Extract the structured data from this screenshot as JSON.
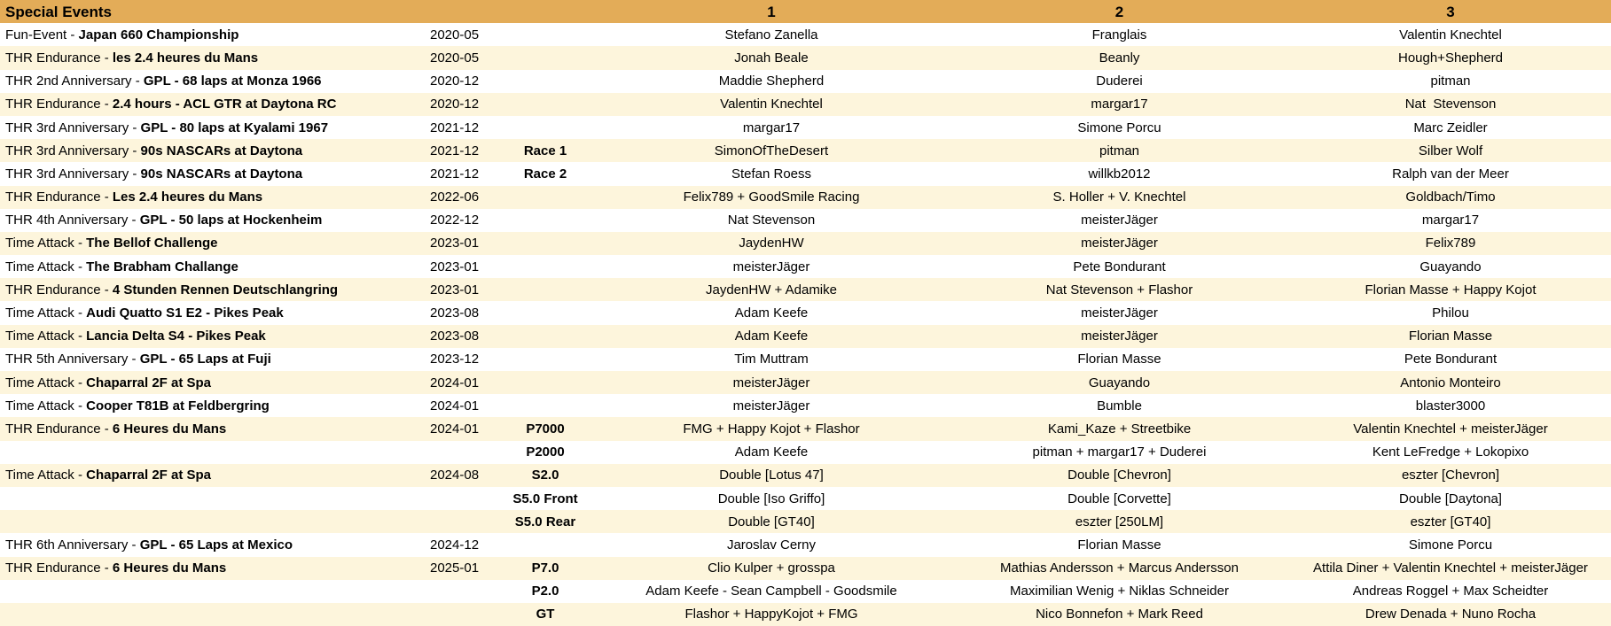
{
  "header": {
    "title": "Special Events",
    "position_columns": [
      "1",
      "2",
      "3"
    ]
  },
  "colors": {
    "header_bg": "#e3ac58",
    "row_bg": "#ffffff",
    "row_alt_bg": "#fdf5dc",
    "text": "#000000"
  },
  "rows": [
    {
      "event_prefix": "Fun-Event - ",
      "event_name": "Japan 660 Championship",
      "date": "2020-05",
      "race_class": "",
      "p1": "Stefano Zanella",
      "p2": "Franglais",
      "p3": "Valentin Knechtel"
    },
    {
      "event_prefix": "THR Endurance - ",
      "event_name": "les 2.4 heures du Mans",
      "date": "2020-05",
      "race_class": "",
      "p1": "Jonah Beale",
      "p2": "Beanly",
      "p3": "Hough+Shepherd"
    },
    {
      "event_prefix": "THR 2nd Anniversary - ",
      "event_name": "GPL - 68 laps at Monza 1966",
      "date": "2020-12",
      "race_class": "",
      "p1": "Maddie Shepherd",
      "p2": "Duderei",
      "p3": "pitman"
    },
    {
      "event_prefix": "THR Endurance - ",
      "event_name": "2.4 hours - ACL GTR at Daytona RC",
      "date": "2020-12",
      "race_class": "",
      "p1": "Valentin Knechtel",
      "p2": "margar17",
      "p3": "Nat  Stevenson"
    },
    {
      "event_prefix": "THR 3rd Anniversary - ",
      "event_name": "GPL - 80 laps at Kyalami 1967",
      "date": "2021-12",
      "race_class": "",
      "p1": "margar17",
      "p2": "Simone Porcu",
      "p3": "Marc Zeidler"
    },
    {
      "event_prefix": "THR 3rd Anniversary - ",
      "event_name": "90s NASCARs at Daytona",
      "date": "2021-12",
      "race_class": "Race 1",
      "p1": "SimonOfTheDesert",
      "p2": "pitman",
      "p3": "Silber Wolf"
    },
    {
      "event_prefix": "THR 3rd Anniversary - ",
      "event_name": "90s NASCARs at Daytona",
      "date": "2021-12",
      "race_class": "Race 2",
      "p1": "Stefan Roess",
      "p2": "willkb2012",
      "p3": "Ralph van der Meer"
    },
    {
      "event_prefix": "THR Endurance - ",
      "event_name": "Les 2.4 heures du Mans",
      "date": "2022-06",
      "race_class": "",
      "p1": "Felix789 + GoodSmile Racing",
      "p2": "S. Holler + V. Knechtel",
      "p3": "Goldbach/Timo"
    },
    {
      "event_prefix": "THR 4th Anniversary - ",
      "event_name": "GPL - 50 laps at Hockenheim",
      "date": "2022-12",
      "race_class": "",
      "p1": "Nat Stevenson",
      "p2": "meisterJäger",
      "p3": "margar17"
    },
    {
      "event_prefix": "Time Attack - ",
      "event_name": "The Bellof Challenge",
      "date": "2023-01",
      "race_class": "",
      "p1": "JaydenHW",
      "p2": "meisterJäger",
      "p3": "Felix789"
    },
    {
      "event_prefix": "Time Attack - ",
      "event_name": "The Brabham Challange",
      "date": "2023-01",
      "race_class": "",
      "p1": "meisterJäger",
      "p2": "Pete Bondurant",
      "p3": "Guayando"
    },
    {
      "event_prefix": "THR Endurance - ",
      "event_name": "4 Stunden Rennen Deutschlangring",
      "date": "2023-01",
      "race_class": "",
      "p1": "JaydenHW + Adamike",
      "p2": "Nat Stevenson + Flashor",
      "p3": "Florian Masse + Happy Kojot"
    },
    {
      "event_prefix": "Time Attack - ",
      "event_name": "Audi Quatto S1 E2 - Pikes Peak",
      "date": "2023-08",
      "race_class": "",
      "p1": "Adam Keefe",
      "p2": "meisterJäger",
      "p3": "Philou"
    },
    {
      "event_prefix": "Time Attack - ",
      "event_name": "Lancia Delta S4 - Pikes Peak",
      "date": "2023-08",
      "race_class": "",
      "p1": "Adam Keefe",
      "p2": "meisterJäger",
      "p3": "Florian Masse"
    },
    {
      "event_prefix": "THR 5th Anniversary - ",
      "event_name": "GPL - 65 Laps at Fuji",
      "date": "2023-12",
      "race_class": "",
      "p1": "Tim Muttram",
      "p2": "Florian Masse",
      "p3": "Pete Bondurant"
    },
    {
      "event_prefix": "Time Attack - ",
      "event_name": "Chaparral 2F at Spa",
      "date": "2024-01",
      "race_class": "",
      "p1": "meisterJäger",
      "p2": "Guayando",
      "p3": "Antonio Monteiro"
    },
    {
      "event_prefix": "Time Attack - ",
      "event_name": "Cooper T81B at Feldbergring",
      "date": "2024-01",
      "race_class": "",
      "p1": "meisterJäger",
      "p2": "Bumble",
      "p3": "blaster3000"
    },
    {
      "event_prefix": "THR Endurance - ",
      "event_name": "6 Heures du Mans",
      "date": "2024-01",
      "race_class": "P7000",
      "p1": "FMG + Happy Kojot + Flashor",
      "p2": "Kami_Kaze + Streetbike",
      "p3": "Valentin Knechtel + meisterJäger"
    },
    {
      "event_prefix": "",
      "event_name": "",
      "date": "",
      "race_class": "P2000",
      "p1": "Adam Keefe",
      "p2": "pitman + margar17 + Duderei",
      "p3": "Kent LeFredge + Lokopixo"
    },
    {
      "event_prefix": "Time Attack - ",
      "event_name": "Chaparral 2F at Spa",
      "date": "2024-08",
      "race_class": "S2.0",
      "p1": "Double [Lotus 47]",
      "p2": "Double [Chevron]",
      "p3": "eszter [Chevron]"
    },
    {
      "event_prefix": "",
      "event_name": "",
      "date": "",
      "race_class": "S5.0 Front",
      "p1": "Double [Iso Griffo]",
      "p2": "Double [Corvette]",
      "p3": "Double [Daytona]"
    },
    {
      "event_prefix": "",
      "event_name": "",
      "date": "",
      "race_class": "S5.0 Rear",
      "p1": "Double [GT40]",
      "p2": "eszter [250LM]",
      "p3": "eszter [GT40]"
    },
    {
      "event_prefix": "THR 6th Anniversary - ",
      "event_name": "GPL - 65 Laps at Mexico",
      "date": "2024-12",
      "race_class": "",
      "p1": "Jaroslav Cerny",
      "p2": "Florian Masse",
      "p3": "Simone Porcu"
    },
    {
      "event_prefix": "THR Endurance - ",
      "event_name": "6 Heures du Mans",
      "date": "2025-01",
      "race_class": "P7.0",
      "p1": "Clio Kulper + grosspa",
      "p2": "Mathias Andersson + Marcus Andersson",
      "p3": "Attila Diner + Valentin Knechtel + meisterJäger"
    },
    {
      "event_prefix": "",
      "event_name": "",
      "date": "",
      "race_class": "P2.0",
      "p1": "Adam Keefe - Sean Campbell - Goodsmile",
      "p2": "Maximilian Wenig + Niklas Schneider",
      "p3": "Andreas Roggel + Max Scheidter"
    },
    {
      "event_prefix": "",
      "event_name": "",
      "date": "",
      "race_class": "GT",
      "p1": "Flashor + HappyKojot + FMG",
      "p2": "Nico Bonnefon + Mark Reed",
      "p3": "Drew Denada + Nuno Rocha"
    }
  ]
}
